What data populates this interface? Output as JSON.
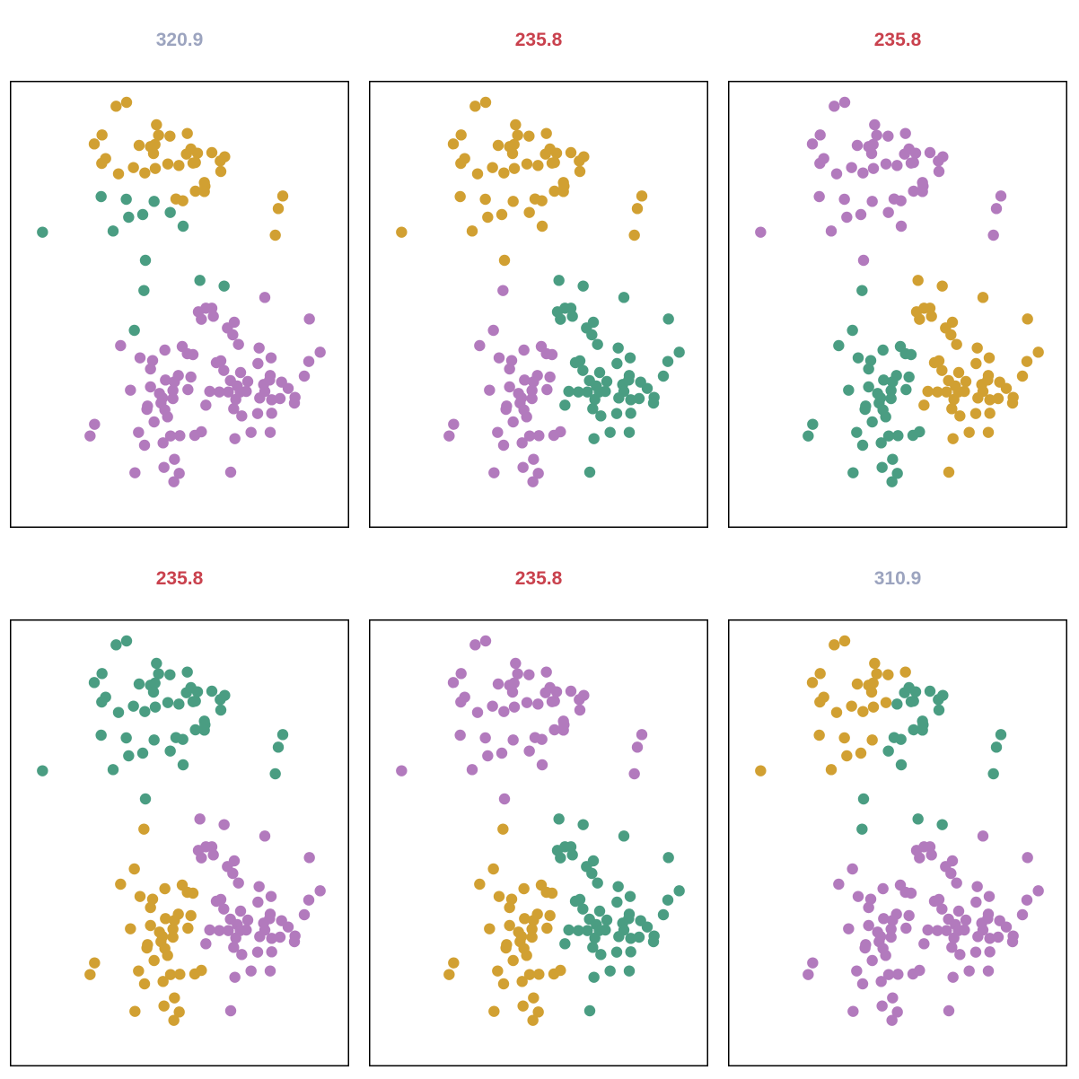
{
  "chart_data": {
    "type": "scatter",
    "xlim": [
      0,
      113.4
    ],
    "ylim": [
      0,
      149.4
    ],
    "grid": false,
    "palette": {
      "orange": "#d1a032",
      "green": "#4a9d82",
      "purple": "#b27abd",
      "title_good": "#c9414d",
      "title_bad": "#9ca4bf"
    },
    "points_format": [
      "x",
      "y",
      "cluster_partition_1",
      "cluster_partition_A",
      "cluster_partition_6"
    ],
    "points": [
      [
        35.5,
        140.9,
        0,
        0,
        0
      ],
      [
        39.0,
        142.2,
        0,
        0,
        0
      ],
      [
        49.0,
        134.7,
        0,
        0,
        0
      ],
      [
        49.7,
        131.2,
        0,
        0,
        0
      ],
      [
        53.5,
        130.9,
        0,
        0,
        0
      ],
      [
        59.3,
        131.8,
        0,
        0,
        0
      ],
      [
        30.8,
        131.3,
        0,
        0,
        0
      ],
      [
        28.2,
        128.3,
        0,
        0,
        0
      ],
      [
        43.2,
        127.8,
        0,
        0,
        0
      ],
      [
        47.0,
        127.4,
        0,
        0,
        0
      ],
      [
        48.5,
        128.1,
        0,
        0,
        0
      ],
      [
        48.0,
        125.1,
        0,
        0,
        0
      ],
      [
        59.0,
        124.9,
        0,
        0,
        1
      ],
      [
        60.5,
        126.6,
        0,
        0,
        1
      ],
      [
        62.7,
        125.2,
        0,
        0,
        1
      ],
      [
        67.5,
        125.4,
        0,
        0,
        1
      ],
      [
        71.8,
        124.0,
        0,
        0,
        1
      ],
      [
        70.3,
        122.6,
        0,
        0,
        1
      ],
      [
        62.0,
        122.1,
        0,
        0,
        1
      ],
      [
        61.2,
        121.9,
        0,
        0,
        1
      ],
      [
        32.0,
        123.4,
        0,
        0,
        0
      ],
      [
        30.7,
        121.8,
        0,
        0,
        0
      ],
      [
        36.3,
        118.3,
        0,
        0,
        0
      ],
      [
        41.3,
        120.4,
        0,
        0,
        0
      ],
      [
        45.1,
        118.6,
        0,
        0,
        0
      ],
      [
        48.6,
        120.1,
        0,
        0,
        0
      ],
      [
        52.8,
        121.6,
        0,
        0,
        0
      ],
      [
        56.5,
        121.1,
        0,
        0,
        1
      ],
      [
        70.5,
        119.1,
        0,
        0,
        1
      ],
      [
        65.0,
        115.4,
        0,
        0,
        1
      ],
      [
        65.2,
        114.2,
        0,
        0,
        1
      ],
      [
        65.0,
        112.4,
        0,
        0,
        1
      ],
      [
        62.0,
        112.5,
        0,
        0,
        1
      ],
      [
        55.5,
        109.9,
        0,
        0,
        1
      ],
      [
        57.8,
        109.3,
        0,
        0,
        1
      ],
      [
        91.2,
        110.9,
        0,
        0,
        1
      ],
      [
        89.7,
        106.7,
        0,
        0,
        1
      ],
      [
        88.7,
        97.8,
        0,
        0,
        1
      ],
      [
        30.5,
        110.7,
        1,
        0,
        0
      ],
      [
        38.9,
        109.8,
        1,
        0,
        0
      ],
      [
        48.2,
        109.1,
        1,
        0,
        0
      ],
      [
        39.7,
        103.8,
        1,
        0,
        0
      ],
      [
        44.4,
        104.7,
        1,
        0,
        0
      ],
      [
        53.6,
        105.4,
        1,
        0,
        1
      ],
      [
        34.5,
        99.2,
        1,
        0,
        0
      ],
      [
        57.9,
        100.8,
        1,
        0,
        1
      ],
      [
        10.9,
        98.8,
        1,
        0,
        0
      ],
      [
        45.3,
        89.4,
        1,
        0,
        1
      ],
      [
        63.5,
        82.7,
        1,
        1,
        1
      ],
      [
        71.6,
        80.8,
        1,
        1,
        1
      ],
      [
        44.8,
        79.3,
        1,
        2,
        1
      ],
      [
        41.6,
        66.0,
        1,
        2,
        2
      ],
      [
        85.2,
        77.0,
        2,
        1,
        2
      ],
      [
        100.1,
        69.8,
        2,
        1,
        2
      ],
      [
        63.0,
        72.2,
        2,
        1,
        2
      ],
      [
        65.5,
        73.4,
        2,
        1,
        2
      ],
      [
        67.5,
        73.4,
        2,
        1,
        2
      ],
      [
        64.0,
        69.7,
        2,
        1,
        2
      ],
      [
        68.0,
        70.7,
        2,
        1,
        2
      ],
      [
        72.7,
        66.8,
        2,
        1,
        2
      ],
      [
        75.0,
        68.7,
        2,
        1,
        2
      ],
      [
        74.5,
        64.5,
        2,
        1,
        2
      ],
      [
        76.4,
        61.3,
        2,
        1,
        2
      ],
      [
        83.3,
        60.1,
        2,
        1,
        2
      ],
      [
        87.3,
        56.8,
        2,
        1,
        2
      ],
      [
        103.7,
        58.7,
        2,
        1,
        2
      ],
      [
        99.9,
        55.6,
        2,
        1,
        2
      ],
      [
        98.4,
        50.7,
        2,
        1,
        2
      ],
      [
        82.9,
        54.9,
        2,
        1,
        2
      ],
      [
        37.0,
        60.9,
        2,
        2,
        2
      ],
      [
        43.5,
        56.8,
        2,
        2,
        2
      ],
      [
        47.7,
        55.9,
        2,
        2,
        2
      ],
      [
        47.0,
        53.1,
        2,
        2,
        2
      ],
      [
        51.8,
        59.4,
        2,
        2,
        2
      ],
      [
        57.6,
        60.6,
        2,
        2,
        2
      ],
      [
        59.3,
        58.2,
        2,
        2,
        2
      ],
      [
        61.2,
        57.9,
        2,
        2,
        2
      ],
      [
        69.0,
        55.2,
        2,
        1,
        2
      ],
      [
        70.5,
        55.8,
        2,
        1,
        2
      ],
      [
        71.5,
        52.6,
        2,
        1,
        2
      ],
      [
        52.0,
        49.4,
        2,
        2,
        2
      ],
      [
        56.3,
        50.9,
        2,
        2,
        2
      ],
      [
        55.0,
        48.8,
        2,
        2,
        2
      ],
      [
        60.5,
        50.4,
        2,
        2,
        2
      ],
      [
        54.5,
        45.9,
        2,
        2,
        2
      ],
      [
        47.0,
        47.1,
        2,
        2,
        2
      ],
      [
        40.3,
        46.0,
        2,
        2,
        2
      ],
      [
        59.5,
        46.2,
        2,
        2,
        2
      ],
      [
        50.0,
        44.9,
        2,
        2,
        2
      ],
      [
        51.0,
        43.4,
        2,
        2,
        2
      ],
      [
        54.5,
        43.2,
        2,
        2,
        2
      ],
      [
        50.5,
        41.7,
        2,
        2,
        2
      ],
      [
        46.0,
        40.7,
        2,
        2,
        2
      ],
      [
        45.8,
        39.6,
        2,
        2,
        2
      ],
      [
        51.8,
        39.4,
        2,
        2,
        2
      ],
      [
        52.7,
        37.1,
        2,
        2,
        2
      ],
      [
        48.2,
        35.4,
        2,
        2,
        2
      ],
      [
        66.8,
        45.6,
        2,
        1,
        2
      ],
      [
        65.5,
        41.0,
        2,
        1,
        2
      ],
      [
        70.0,
        45.4,
        2,
        1,
        2
      ],
      [
        73.7,
        49.2,
        2,
        1,
        2
      ],
      [
        77.1,
        51.9,
        2,
        1,
        2
      ],
      [
        79.5,
        48.9,
        2,
        1,
        2
      ],
      [
        76.0,
        47.4,
        2,
        1,
        2
      ],
      [
        73.0,
        45.4,
        2,
        1,
        2
      ],
      [
        77.0,
        45.4,
        2,
        1,
        2
      ],
      [
        79.0,
        45.6,
        2,
        1,
        2
      ],
      [
        75.5,
        42.9,
        2,
        1,
        2
      ],
      [
        74.8,
        39.8,
        2,
        1,
        2
      ],
      [
        77.5,
        37.4,
        2,
        1,
        2
      ],
      [
        84.8,
        47.9,
        2,
        1,
        2
      ],
      [
        87.0,
        50.9,
        2,
        1,
        2
      ],
      [
        86.8,
        49.4,
        2,
        1,
        2
      ],
      [
        90.8,
        48.7,
        2,
        1,
        2
      ],
      [
        93.0,
        46.6,
        2,
        1,
        2
      ],
      [
        85.2,
        45.6,
        2,
        1,
        2
      ],
      [
        83.5,
        43.4,
        2,
        1,
        2
      ],
      [
        87.5,
        42.8,
        2,
        1,
        2
      ],
      [
        90.3,
        43.2,
        2,
        1,
        2
      ],
      [
        95.3,
        43.6,
        2,
        1,
        2
      ],
      [
        95.1,
        41.7,
        2,
        1,
        2
      ],
      [
        82.8,
        38.2,
        2,
        1,
        2
      ],
      [
        87.5,
        38.3,
        2,
        1,
        2
      ],
      [
        28.3,
        34.6,
        2,
        2,
        2
      ],
      [
        26.8,
        30.7,
        2,
        2,
        2
      ],
      [
        43.0,
        31.9,
        2,
        2,
        2
      ],
      [
        45.0,
        27.6,
        2,
        2,
        2
      ],
      [
        51.2,
        28.4,
        2,
        2,
        2
      ],
      [
        53.7,
        30.7,
        2,
        2,
        2
      ],
      [
        56.8,
        30.8,
        2,
        2,
        2
      ],
      [
        61.8,
        30.9,
        2,
        2,
        2
      ],
      [
        64.0,
        32.1,
        2,
        2,
        2
      ],
      [
        75.2,
        29.8,
        2,
        1,
        2
      ],
      [
        80.6,
        31.9,
        2,
        1,
        2
      ],
      [
        87.0,
        31.9,
        2,
        1,
        2
      ],
      [
        55.0,
        22.9,
        2,
        2,
        2
      ],
      [
        51.5,
        20.2,
        2,
        2,
        2
      ],
      [
        41.8,
        18.4,
        2,
        2,
        2
      ],
      [
        56.6,
        18.2,
        2,
        2,
        2
      ],
      [
        54.8,
        15.4,
        2,
        2,
        2
      ],
      [
        73.8,
        18.6,
        2,
        1,
        2
      ]
    ],
    "panels": [
      {
        "title": "320.9",
        "title_color": "#9ca4bf",
        "partition": 2,
        "colors": [
          "#d1a032",
          "#4a9d82",
          "#b27abd"
        ]
      },
      {
        "title": "235.8",
        "title_color": "#c9414d",
        "partition": 3,
        "colors": [
          "#d1a032",
          "#4a9d82",
          "#b27abd"
        ]
      },
      {
        "title": "235.8",
        "title_color": "#c9414d",
        "partition": 3,
        "colors": [
          "#b27abd",
          "#d1a032",
          "#4a9d82"
        ]
      },
      {
        "title": "235.8",
        "title_color": "#c9414d",
        "partition": 3,
        "colors": [
          "#4a9d82",
          "#b27abd",
          "#d1a032"
        ]
      },
      {
        "title": "235.8",
        "title_color": "#c9414d",
        "partition": 3,
        "colors": [
          "#b27abd",
          "#4a9d82",
          "#d1a032"
        ]
      },
      {
        "title": "310.9",
        "title_color": "#9ca4bf",
        "partition": 4,
        "colors": [
          "#d1a032",
          "#4a9d82",
          "#b27abd"
        ]
      }
    ]
  }
}
